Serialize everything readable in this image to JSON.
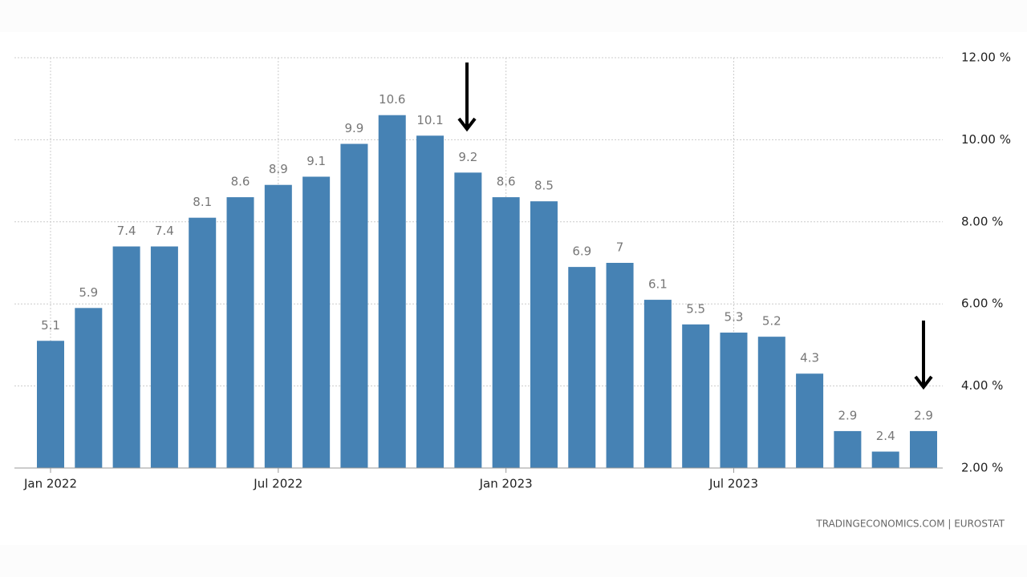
{
  "chart_data": {
    "type": "bar",
    "categories": [
      "Jan 2022",
      null,
      null,
      null,
      null,
      null,
      "Jul 2022",
      null,
      null,
      null,
      null,
      null,
      "Jan 2023",
      null,
      null,
      null,
      null,
      null,
      "Jul 2023",
      null,
      null,
      null,
      null,
      null
    ],
    "values": [
      5.1,
      5.9,
      7.4,
      7.4,
      8.1,
      8.6,
      8.9,
      9.1,
      9.9,
      10.6,
      10.1,
      9.2,
      8.6,
      8.5,
      6.9,
      7,
      6.1,
      5.5,
      5.3,
      5.2,
      4.3,
      2.9,
      2.4,
      2.9
    ],
    "color": "#4682b4",
    "ylim": [
      2,
      12
    ],
    "yticks": [
      {
        "value": 2,
        "label": "2.00 %"
      },
      {
        "value": 4,
        "label": "4.00 %"
      },
      {
        "value": 6,
        "label": "6.00 %"
      },
      {
        "value": 8,
        "label": "8.00 %"
      },
      {
        "value": 10,
        "label": "10.00 %"
      },
      {
        "value": 12,
        "label": "12.00 %"
      }
    ],
    "grid": true,
    "source": "TRADINGECONOMICS.COM | EUROSTAT"
  }
}
